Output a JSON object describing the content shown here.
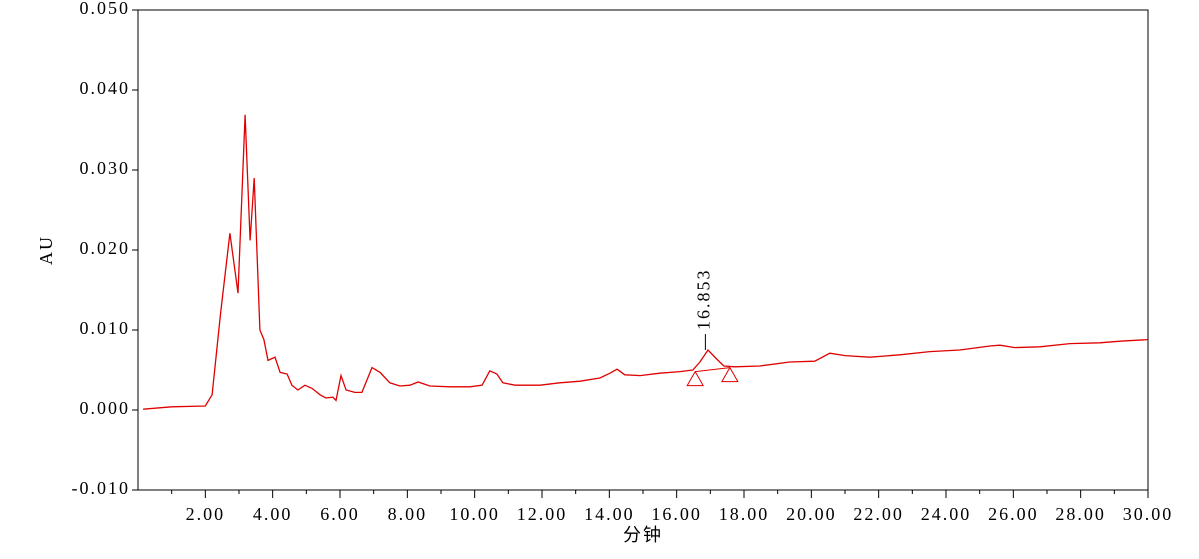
{
  "chart_data": {
    "type": "line",
    "y_label": "AU",
    "x_label": "分钟",
    "xlim": [
      0,
      30
    ],
    "ylim": [
      -0.01,
      0.05
    ],
    "xticks": [
      {
        "value": 2,
        "label": "2.00"
      },
      {
        "value": 4,
        "label": "4.00"
      },
      {
        "value": 6,
        "label": "6.00"
      },
      {
        "value": 8,
        "label": "8.00"
      },
      {
        "value": 10,
        "label": "10.00"
      },
      {
        "value": 12,
        "label": "12.00"
      },
      {
        "value": 14,
        "label": "14.00"
      },
      {
        "value": 16,
        "label": "16.00"
      },
      {
        "value": 18,
        "label": "18.00"
      },
      {
        "value": 20,
        "label": "20.00"
      },
      {
        "value": 22,
        "label": "22.00"
      },
      {
        "value": 24,
        "label": "24.00"
      },
      {
        "value": 26,
        "label": "26.00"
      },
      {
        "value": 28,
        "label": "28.00"
      },
      {
        "value": 30,
        "label": "30.00"
      }
    ],
    "xminorticks": [
      1,
      3,
      5,
      7,
      9,
      11,
      13,
      15,
      17,
      19,
      21,
      23,
      25,
      27,
      29
    ],
    "yticks": [
      {
        "value": -0.01,
        "label": "-0.010"
      },
      {
        "value": 0,
        "label": "0.000"
      },
      {
        "value": 0.01,
        "label": "0.010"
      },
      {
        "value": 0.02,
        "label": "0.020"
      },
      {
        "value": 0.03,
        "label": "0.030"
      },
      {
        "value": 0.04,
        "label": "0.040"
      },
      {
        "value": 0.05,
        "label": "0.050"
      }
    ],
    "x": [
      0.15,
      1.0,
      2.0,
      2.2,
      2.45,
      2.73,
      2.97,
      3.18,
      3.33,
      3.45,
      3.62,
      3.74,
      3.86,
      4.07,
      4.22,
      4.43,
      4.57,
      4.75,
      4.96,
      5.17,
      5.41,
      5.58,
      5.79,
      5.88,
      6.03,
      6.18,
      6.44,
      6.65,
      6.95,
      7.19,
      7.48,
      7.78,
      8.08,
      8.32,
      8.67,
      9.27,
      9.86,
      10.22,
      10.45,
      10.66,
      10.84,
      11.2,
      11.94,
      12.53,
      13.13,
      13.72,
      14.02,
      14.23,
      14.46,
      14.91,
      15.5,
      16.1,
      16.48,
      16.69,
      16.93,
      17.16,
      17.4,
      17.73,
      18.47,
      19.36,
      20.1,
      20.55,
      21.0,
      21.74,
      22.63,
      23.52,
      24.41,
      25.3,
      25.6,
      26.05,
      26.79,
      27.68,
      28.57,
      29.17,
      30.0
    ],
    "series": [
      {
        "color": "#e00000",
        "values": [
          0.0001,
          0.0004,
          0.0005,
          0.0019,
          0.012,
          0.0221,
          0.0146,
          0.0369,
          0.0212,
          0.029,
          0.01,
          0.0088,
          0.0062,
          0.0066,
          0.0047,
          0.0045,
          0.0031,
          0.0025,
          0.0031,
          0.0027,
          0.0019,
          0.0015,
          0.0016,
          0.0012,
          0.0043,
          0.0025,
          0.0022,
          0.0022,
          0.0053,
          0.0047,
          0.0034,
          0.003,
          0.0031,
          0.0035,
          0.003,
          0.0029,
          0.0029,
          0.0031,
          0.0049,
          0.0045,
          0.0034,
          0.0031,
          0.0031,
          0.0034,
          0.0036,
          0.004,
          0.0046,
          0.0051,
          0.0044,
          0.0043,
          0.0046,
          0.0048,
          0.005,
          0.006,
          0.0075,
          0.0065,
          0.0055,
          0.0054,
          0.0055,
          0.006,
          0.0061,
          0.0071,
          0.0068,
          0.0066,
          0.0069,
          0.0073,
          0.0075,
          0.008,
          0.0081,
          0.0078,
          0.0079,
          0.0083,
          0.0084,
          0.0086,
          0.0088
        ]
      }
    ],
    "peak": {
      "x": 16.853,
      "y": 0.0075,
      "start": {
        "x": 16.55,
        "y": 0.0048
      },
      "end": {
        "x": 17.58,
        "y": 0.0053
      }
    }
  }
}
